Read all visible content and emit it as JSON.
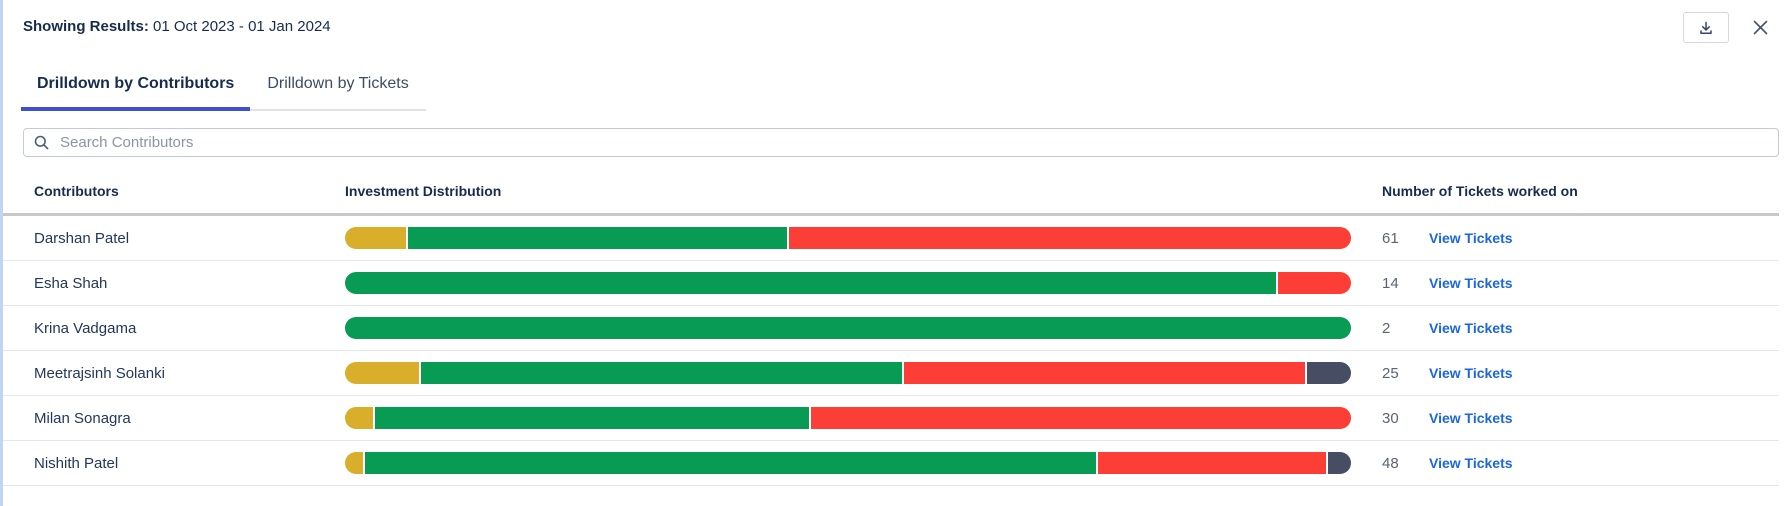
{
  "header": {
    "showing_label": "Showing Results:",
    "date_range": "01 Oct 2023 - 01 Jan 2024"
  },
  "toolbar": {
    "icons": [
      "download-icon",
      "close-icon"
    ]
  },
  "tabs": [
    {
      "label": "Drilldown by Contributors",
      "active": true
    },
    {
      "label": "Drilldown by Tickets",
      "active": false
    }
  ],
  "search": {
    "placeholder": "Search Contributors",
    "value": ""
  },
  "colors": {
    "golden": "#d9ae2b",
    "green": "#089b54",
    "red": "#fc3e37",
    "slate": "#474d63",
    "link_blue": "#1b66e0",
    "tab_underline": "#3e4fd0"
  },
  "table": {
    "columns": [
      "Contributors",
      "Investment Distribution",
      "Number of Tickets worked on"
    ],
    "view_tickets_label": "View Tickets",
    "rows": [
      {
        "name": "Darshan Patel",
        "tickets": "61",
        "segments": [
          {
            "color": "golden",
            "pct": 6.3
          },
          {
            "color": "green",
            "pct": 37.8
          },
          {
            "color": "red",
            "pct": 55.9
          }
        ]
      },
      {
        "name": "Esha Shah",
        "tickets": "14",
        "segments": [
          {
            "color": "green",
            "pct": 92.7
          },
          {
            "color": "red",
            "pct": 7.3
          }
        ]
      },
      {
        "name": "Krina Vadgama",
        "tickets": "2",
        "segments": [
          {
            "color": "green",
            "pct": 100
          }
        ]
      },
      {
        "name": "Meetrajsinh Solanki",
        "tickets": "25",
        "segments": [
          {
            "color": "golden",
            "pct": 7.6
          },
          {
            "color": "green",
            "pct": 48.0
          },
          {
            "color": "red",
            "pct": 40.0
          },
          {
            "color": "slate",
            "pct": 4.4
          }
        ]
      },
      {
        "name": "Milan Sonagra",
        "tickets": "30",
        "segments": [
          {
            "color": "golden",
            "pct": 3.0
          },
          {
            "color": "green",
            "pct": 43.3
          },
          {
            "color": "red",
            "pct": 53.7
          }
        ]
      },
      {
        "name": "Nishith Patel",
        "tickets": "48",
        "segments": [
          {
            "color": "golden",
            "pct": 2.0
          },
          {
            "color": "green",
            "pct": 72.9
          },
          {
            "color": "red",
            "pct": 22.8
          },
          {
            "color": "slate",
            "pct": 2.3
          }
        ]
      }
    ]
  }
}
